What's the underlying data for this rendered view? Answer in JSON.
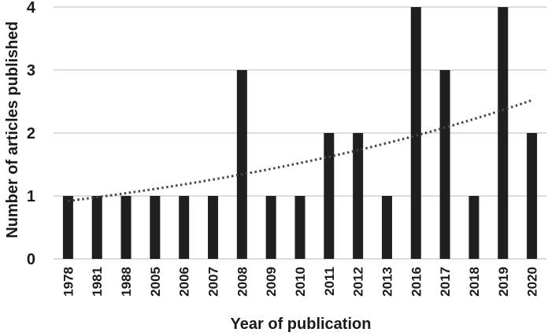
{
  "chart_data": {
    "type": "bar",
    "categories": [
      "1978",
      "1981",
      "1988",
      "2005",
      "2006",
      "2007",
      "2008",
      "2009",
      "2010",
      "2011",
      "2012",
      "2013",
      "2016",
      "2017",
      "2018",
      "2019",
      "2020"
    ],
    "values": [
      1,
      1,
      1,
      1,
      1,
      1,
      3,
      1,
      1,
      2,
      2,
      1,
      4,
      3,
      1,
      4,
      2
    ],
    "xlabel": "Year of publication",
    "ylabel": "Number of articles published",
    "ylim": [
      0,
      4
    ],
    "yticks": [
      0,
      1,
      2,
      3,
      4
    ],
    "grid": true,
    "trendline": {
      "type": "exponential",
      "style": "dotted",
      "start": 0.92,
      "end": 2.52
    },
    "colors": {
      "bar": "#1f1f1f",
      "grid": "#c8c8c8",
      "trend": "#444444"
    }
  }
}
